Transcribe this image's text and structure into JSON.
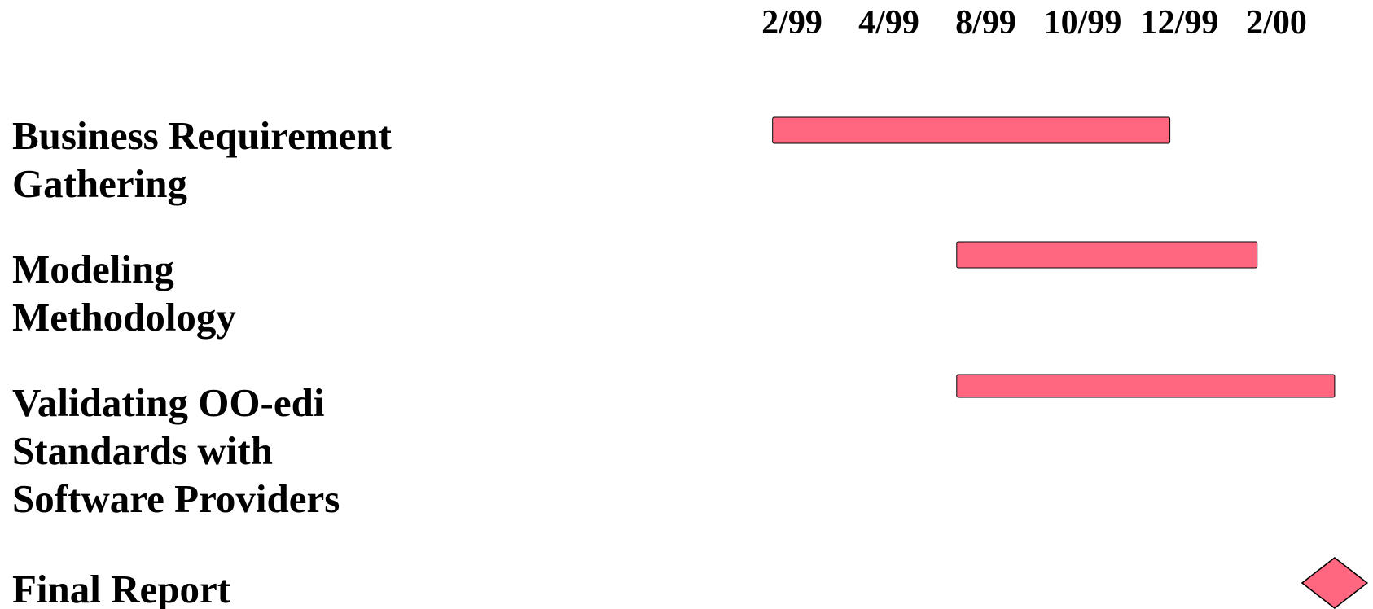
{
  "chart_data": {
    "type": "gantt",
    "xticks": [
      {
        "value": 0,
        "label": "2/99"
      },
      {
        "value": 1,
        "label": "4/99"
      },
      {
        "value": 2,
        "label": "8/99"
      },
      {
        "value": 3,
        "label": "10/99"
      },
      {
        "value": 4,
        "label": "12/99"
      },
      {
        "value": 5,
        "label": "2/00"
      }
    ],
    "xlim": [
      -0.5,
      6
    ],
    "color": "#ff6680",
    "tasks": [
      {
        "label": [
          "Business Requirement",
          "Gathering"
        ],
        "start": -0.2,
        "end": 3.9
      },
      {
        "label": [
          "Modeling",
          "Methodology"
        ],
        "start": 1.7,
        "end": 4.8
      },
      {
        "label": [
          "Validating OO-edi",
          "Standards with",
          "Software Providers"
        ],
        "start": 1.7,
        "end": 5.6
      },
      {
        "label": [
          "Final Report"
        ],
        "milestone": 5.6
      }
    ]
  }
}
